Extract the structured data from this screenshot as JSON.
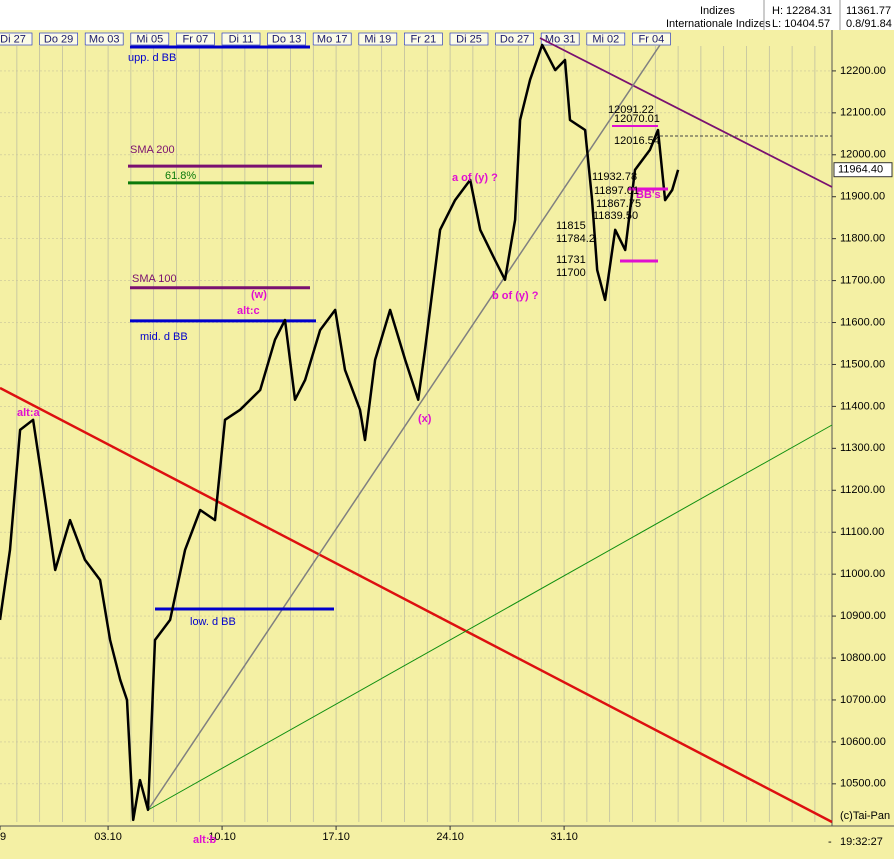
{
  "chart_data": {
    "type": "line",
    "color": "#000000",
    "header": [
      "Indizes",
      "Internationale Indizes",
      "H: 12284.31",
      "L: 10404.57",
      "11361.77",
      "0.8/91.84"
    ],
    "top_labels": [
      "Di 27",
      "Do 29",
      "Mo 03",
      "Mi 05",
      "Fr 07",
      "Di 11",
      "Do 13",
      "Mo 17",
      "Mi 19",
      "Fr 21",
      "Di 25",
      "Do 27",
      "Mo 31",
      "Mi 02",
      "Fr 04"
    ],
    "x": [
      -4.74,
      -4.3,
      -3.86,
      -3.29,
      -2.76,
      -2.32,
      -1.67,
      -1.01,
      -0.35,
      0.09,
      0.53,
      0.83,
      1.1,
      1.4,
      1.75,
      2.06,
      2.72,
      3.38,
      4.04,
      4.69,
      5.13,
      5.79,
      6.67,
      7.32,
      7.76,
      8.2,
      8.64,
      9.3,
      9.96,
      10.39,
      11.05,
      11.27,
      11.71,
      12.37,
      13.03,
      13.6,
      13.9,
      14.56,
      15.22,
      15.88,
      16.32,
      16.97,
      17.41,
      17.85,
      18.07,
      18.51,
      19.04,
      19.61,
      20.04,
      20.26,
      20.92,
      21.23,
      21.45,
      21.8,
      22.24,
      22.68,
      23.11,
      23.77,
      24.12,
      24.43,
      24.74,
      25.0
    ],
    "values": [
      10891,
      11058,
      11344,
      11368,
      11177,
      11010,
      11129,
      11034,
      10986,
      10843,
      10748,
      10700,
      10414,
      10509,
      10438,
      10843,
      10891,
      11058,
      11153,
      11129,
      11368,
      11392,
      11439,
      11559,
      11606,
      11416,
      11463,
      11582,
      11630,
      11487,
      11392,
      11320,
      11511,
      11630,
      11511,
      11416,
      11535,
      11821,
      11892,
      11940,
      11821,
      11749,
      11702,
      11845,
      12083,
      12179,
      12262,
      12202,
      12226,
      12083,
      12059,
      11892,
      11725,
      11654,
      11821,
      11773,
      11964,
      12012,
      12059,
      11892,
      11916,
      11964
    ],
    "xlim": [
      -4.74,
      31.75
    ],
    "xticks": [
      {
        "value": -4.74,
        "label": "9"
      },
      {
        "value": 0,
        "label": "03.10"
      },
      {
        "value": 5,
        "label": "10.10"
      },
      {
        "value": 10,
        "label": "17.10"
      },
      {
        "value": 15,
        "label": "24.10"
      },
      {
        "value": 20,
        "label": "31.10"
      }
    ],
    "ylim": [
      10409,
      12288
    ],
    "yticks": [
      {
        "value": 10500,
        "label": "10500.00"
      },
      {
        "value": 10600,
        "label": "10600.00"
      },
      {
        "value": 10700,
        "label": "10700.00"
      },
      {
        "value": 10800,
        "label": "10800.00"
      },
      {
        "value": 10900,
        "label": "10900.00"
      },
      {
        "value": 11000,
        "label": "11000.00"
      },
      {
        "value": 11100,
        "label": "11100.00"
      },
      {
        "value": 11200,
        "label": "11200.00"
      },
      {
        "value": 11300,
        "label": "11300.00"
      },
      {
        "value": 11400,
        "label": "11400.00"
      },
      {
        "value": 11500,
        "label": "11500.00"
      },
      {
        "value": 11600,
        "label": "11600.00"
      },
      {
        "value": 11700,
        "label": "11700.00"
      },
      {
        "value": 11800,
        "label": "11800.00"
      },
      {
        "value": 11900,
        "label": "11900.00"
      },
      {
        "value": 12000,
        "label": "12000.00"
      },
      {
        "value": 12100,
        "label": "12100.00"
      },
      {
        "value": 12200,
        "label": "12200.00"
      }
    ],
    "grid": true,
    "last_price": {
      "value": 11964.4,
      "label": "11964.40"
    },
    "levels": [
      {
        "label": "upp. d BB",
        "value": 12257,
        "color": "#0000cc"
      },
      {
        "label": "SMA 200",
        "value": 11973,
        "color": "#7a1070"
      },
      {
        "label": "61.8%",
        "value": 11933,
        "color": "#0a7a0a"
      },
      {
        "label": "SMA 100",
        "value": 11683,
        "color": "#7a1070"
      },
      {
        "label": "mid. d BB",
        "value": 11604,
        "color": "#0000cc"
      },
      {
        "label": "low. d BB",
        "value": 10917,
        "color": "#0000cc"
      }
    ],
    "annotations": [
      "alt:a",
      "(w)",
      "alt:c",
      "(x)",
      "a of (y) ?",
      "b of (y) ?",
      "alt:b",
      "BB's"
    ],
    "price_labels": [
      "12091.22",
      "12070.01",
      "12016.54",
      "11932.78",
      "11897.01",
      "11867.75",
      "11839.50",
      "11815",
      "11784.2",
      "11731",
      "11700"
    ],
    "footer": [
      "-",
      "19:32:27",
      "(c)Tai-Pan"
    ]
  }
}
